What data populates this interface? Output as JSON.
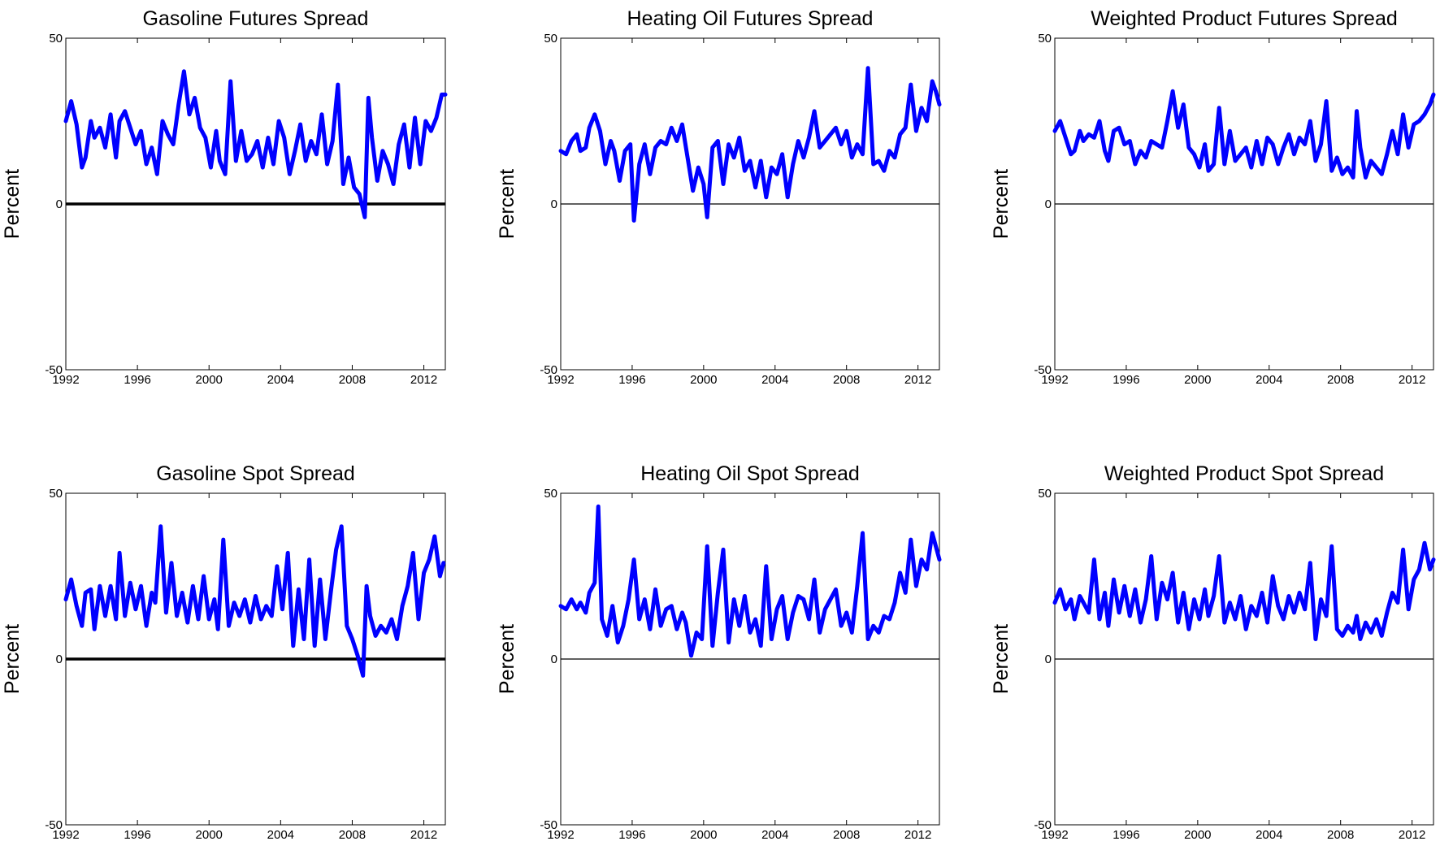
{
  "chart_data": [
    {
      "type": "line",
      "title": "Gasoline Futures Spread",
      "ylabel": "Percent",
      "xlim": [
        1992,
        2013.2
      ],
      "ylim": [
        -50,
        50
      ],
      "xticks": [
        "1992",
        "1996",
        "2000",
        "2004",
        "2008",
        "2012"
      ],
      "yticks": [
        "-50",
        "0",
        "50"
      ],
      "zero_line_bold": true,
      "series_color": "#0000ff",
      "x": [
        1992.0,
        1992.3,
        1992.6,
        1992.9,
        1993.1,
        1993.4,
        1993.6,
        1993.9,
        1994.2,
        1994.5,
        1994.8,
        1995.0,
        1995.3,
        1995.6,
        1995.9,
        1996.2,
        1996.5,
        1996.8,
        1997.1,
        1997.4,
        1997.7,
        1998.0,
        1998.3,
        1998.6,
        1998.9,
        1999.2,
        1999.5,
        1999.8,
        2000.1,
        2000.4,
        2000.6,
        2000.9,
        2001.2,
        2001.5,
        2001.8,
        2002.1,
        2002.4,
        2002.7,
        2003.0,
        2003.3,
        2003.6,
        2003.9,
        2004.2,
        2004.5,
        2004.8,
        2005.1,
        2005.4,
        2005.7,
        2006.0,
        2006.3,
        2006.6,
        2006.9,
        2007.2,
        2007.5,
        2007.8,
        2008.1,
        2008.4,
        2008.7,
        2008.9,
        2009.1,
        2009.4,
        2009.7,
        2010.0,
        2010.3,
        2010.6,
        2010.9,
        2011.2,
        2011.5,
        2011.8,
        2012.1,
        2012.4,
        2012.7,
        2013.0,
        2013.2
      ],
      "y": [
        25,
        31,
        24,
        11,
        14,
        25,
        20,
        23,
        17,
        27,
        14,
        25,
        28,
        23,
        18,
        22,
        12,
        17,
        9,
        25,
        21,
        18,
        30,
        40,
        27,
        32,
        23,
        20,
        11,
        22,
        13,
        9,
        37,
        13,
        22,
        13,
        15,
        19,
        11,
        20,
        12,
        25,
        20,
        9,
        16,
        24,
        13,
        19,
        15,
        27,
        12,
        19,
        36,
        6,
        14,
        5,
        3,
        -4,
        32,
        20,
        7,
        16,
        12,
        6,
        18,
        24,
        11,
        26,
        12,
        25,
        22,
        26,
        33,
        33
      ]
    },
    {
      "type": "line",
      "title": "Heating Oil Futures Spread",
      "ylabel": "Percent",
      "xlim": [
        1992,
        2013.2
      ],
      "ylim": [
        -50,
        50
      ],
      "xticks": [
        "1992",
        "1996",
        "2000",
        "2004",
        "2008",
        "2012"
      ],
      "yticks": [
        "-50",
        "0",
        "50"
      ],
      "zero_line_bold": false,
      "series_color": "#0000ff",
      "x": [
        1992.0,
        1992.3,
        1992.6,
        1992.9,
        1993.1,
        1993.4,
        1993.6,
        1993.9,
        1994.2,
        1994.5,
        1994.8,
        1995.0,
        1995.3,
        1995.6,
        1995.9,
        1996.1,
        1996.4,
        1996.7,
        1997.0,
        1997.3,
        1997.6,
        1997.9,
        1998.2,
        1998.5,
        1998.8,
        1999.1,
        1999.4,
        1999.7,
        2000.0,
        2000.2,
        2000.5,
        2000.8,
        2001.1,
        2001.4,
        2001.7,
        2002.0,
        2002.3,
        2002.6,
        2002.9,
        2003.2,
        2003.5,
        2003.8,
        2004.1,
        2004.4,
        2004.7,
        2005.0,
        2005.3,
        2005.6,
        2005.9,
        2006.2,
        2006.5,
        2006.8,
        2007.1,
        2007.4,
        2007.7,
        2008.0,
        2008.3,
        2008.6,
        2008.9,
        2009.2,
        2009.5,
        2009.8,
        2010.1,
        2010.4,
        2010.7,
        2011.0,
        2011.3,
        2011.6,
        2011.9,
        2012.2,
        2012.5,
        2012.8,
        2013.0,
        2013.2
      ],
      "y": [
        16,
        15,
        19,
        21,
        16,
        17,
        23,
        27,
        22,
        12,
        19,
        16,
        7,
        16,
        18,
        -5,
        12,
        18,
        9,
        17,
        19,
        18,
        23,
        19,
        24,
        14,
        4,
        11,
        6,
        -4,
        17,
        19,
        6,
        18,
        14,
        20,
        10,
        13,
        5,
        13,
        2,
        11,
        9,
        15,
        2,
        12,
        19,
        14,
        20,
        28,
        17,
        19,
        21,
        23,
        18,
        22,
        14,
        18,
        15,
        41,
        12,
        13,
        10,
        16,
        14,
        21,
        23,
        36,
        22,
        29,
        25,
        37,
        34,
        30
      ]
    },
    {
      "type": "line",
      "title": "Weighted Product Futures Spread",
      "ylabel": "Percent",
      "xlim": [
        1992,
        2013.2
      ],
      "ylim": [
        -50,
        50
      ],
      "xticks": [
        "1992",
        "1996",
        "2000",
        "2004",
        "2008",
        "2012"
      ],
      "yticks": [
        "-50",
        "0",
        "50"
      ],
      "zero_line_bold": false,
      "series_color": "#0000ff",
      "x": [
        1992.0,
        1992.3,
        1992.6,
        1992.9,
        1993.1,
        1993.4,
        1993.6,
        1993.9,
        1994.2,
        1994.5,
        1994.8,
        1995.0,
        1995.3,
        1995.6,
        1995.9,
        1996.2,
        1996.5,
        1996.8,
        1997.1,
        1997.4,
        1997.7,
        1998.0,
        1998.3,
        1998.6,
        1998.9,
        1999.2,
        1999.5,
        1999.8,
        2000.1,
        2000.4,
        2000.6,
        2000.9,
        2001.2,
        2001.5,
        2001.8,
        2002.1,
        2002.4,
        2002.7,
        2003.0,
        2003.3,
        2003.6,
        2003.9,
        2004.2,
        2004.5,
        2004.8,
        2005.1,
        2005.4,
        2005.7,
        2006.0,
        2006.3,
        2006.6,
        2006.9,
        2007.2,
        2007.5,
        2007.8,
        2008.1,
        2008.4,
        2008.7,
        2008.9,
        2009.1,
        2009.4,
        2009.7,
        2010.0,
        2010.3,
        2010.6,
        2010.9,
        2011.2,
        2011.5,
        2011.8,
        2012.1,
        2012.4,
        2012.7,
        2013.0,
        2013.2
      ],
      "y": [
        22,
        25,
        20,
        15,
        16,
        22,
        19,
        21,
        20,
        25,
        16,
        13,
        22,
        23,
        18,
        19,
        12,
        16,
        14,
        19,
        18,
        17,
        25,
        34,
        23,
        30,
        17,
        15,
        11,
        18,
        10,
        12,
        29,
        12,
        22,
        13,
        15,
        17,
        11,
        19,
        12,
        20,
        18,
        12,
        17,
        21,
        15,
        20,
        18,
        25,
        13,
        18,
        31,
        10,
        14,
        9,
        11,
        8,
        28,
        17,
        8,
        13,
        11,
        9,
        15,
        22,
        15,
        27,
        17,
        24,
        25,
        27,
        30,
        33
      ]
    },
    {
      "type": "line",
      "title": "Gasoline Spot Spread",
      "ylabel": "Percent",
      "xlim": [
        1992,
        2013.2
      ],
      "ylim": [
        -50,
        50
      ],
      "xticks": [
        "1992",
        "1996",
        "2000",
        "2004",
        "2008",
        "2012"
      ],
      "yticks": [
        "-50",
        "0",
        "50"
      ],
      "zero_line_bold": true,
      "series_color": "#0000ff",
      "x": [
        1992.0,
        1992.3,
        1992.6,
        1992.9,
        1993.1,
        1993.4,
        1993.6,
        1993.9,
        1994.2,
        1994.5,
        1994.8,
        1995.0,
        1995.3,
        1995.6,
        1995.9,
        1996.2,
        1996.5,
        1996.8,
        1997.0,
        1997.3,
        1997.6,
        1997.9,
        1998.2,
        1998.5,
        1998.8,
        1999.1,
        1999.4,
        1999.7,
        2000.0,
        2000.3,
        2000.5,
        2000.8,
        2001.1,
        2001.4,
        2001.7,
        2002.0,
        2002.3,
        2002.6,
        2002.9,
        2003.2,
        2003.5,
        2003.8,
        2004.1,
        2004.4,
        2004.7,
        2005.0,
        2005.3,
        2005.6,
        2005.9,
        2006.2,
        2006.5,
        2006.8,
        2007.1,
        2007.4,
        2007.7,
        2008.0,
        2008.3,
        2008.6,
        2008.8,
        2009.0,
        2009.3,
        2009.6,
        2009.9,
        2010.2,
        2010.5,
        2010.8,
        2011.1,
        2011.4,
        2011.7,
        2012.0,
        2012.3,
        2012.6,
        2012.9,
        2013.1
      ],
      "y": [
        18,
        24,
        16,
        10,
        20,
        21,
        9,
        22,
        13,
        22,
        12,
        32,
        13,
        23,
        15,
        22,
        10,
        20,
        17,
        40,
        14,
        29,
        13,
        20,
        11,
        22,
        12,
        25,
        12,
        18,
        9,
        36,
        10,
        17,
        13,
        18,
        11,
        19,
        12,
        16,
        13,
        28,
        15,
        32,
        4,
        21,
        6,
        30,
        4,
        24,
        6,
        20,
        33,
        40,
        10,
        6,
        1,
        -5,
        22,
        13,
        7,
        10,
        8,
        12,
        6,
        16,
        22,
        32,
        12,
        26,
        30,
        37,
        25,
        29
      ]
    },
    {
      "type": "line",
      "title": "Heating Oil Spot Spread",
      "ylabel": "Percent",
      "xlim": [
        1992,
        2013.2
      ],
      "ylim": [
        -50,
        50
      ],
      "xticks": [
        "1992",
        "1996",
        "2000",
        "2004",
        "2008",
        "2012"
      ],
      "yticks": [
        "-50",
        "0",
        "50"
      ],
      "zero_line_bold": false,
      "series_color": "#0000ff",
      "x": [
        1992.0,
        1992.3,
        1992.6,
        1992.9,
        1993.1,
        1993.4,
        1993.6,
        1993.9,
        1994.1,
        1994.3,
        1994.6,
        1994.9,
        1995.2,
        1995.5,
        1995.8,
        1996.1,
        1996.4,
        1996.7,
        1997.0,
        1997.3,
        1997.6,
        1997.9,
        1998.2,
        1998.5,
        1998.8,
        1999.0,
        1999.3,
        1999.6,
        1999.9,
        2000.2,
        2000.5,
        2000.8,
        2001.1,
        2001.4,
        2001.7,
        2002.0,
        2002.3,
        2002.6,
        2002.9,
        2003.2,
        2003.5,
        2003.8,
        2004.1,
        2004.4,
        2004.7,
        2005.0,
        2005.3,
        2005.6,
        2005.9,
        2006.2,
        2006.5,
        2006.8,
        2007.1,
        2007.4,
        2007.7,
        2008.0,
        2008.3,
        2008.6,
        2008.9,
        2009.2,
        2009.5,
        2009.8,
        2010.1,
        2010.4,
        2010.7,
        2011.0,
        2011.3,
        2011.6,
        2011.9,
        2012.2,
        2012.5,
        2012.8,
        2013.0,
        2013.2
      ],
      "y": [
        16,
        15,
        18,
        15,
        17,
        14,
        20,
        23,
        46,
        12,
        7,
        16,
        5,
        10,
        18,
        30,
        12,
        18,
        9,
        21,
        10,
        15,
        16,
        9,
        14,
        11,
        1,
        8,
        6,
        34,
        4,
        20,
        33,
        5,
        18,
        10,
        19,
        8,
        12,
        4,
        28,
        6,
        15,
        19,
        6,
        14,
        19,
        18,
        12,
        24,
        8,
        15,
        18,
        21,
        10,
        14,
        8,
        22,
        38,
        6,
        10,
        8,
        13,
        12,
        17,
        26,
        20,
        36,
        22,
        30,
        27,
        38,
        34,
        30
      ]
    },
    {
      "type": "line",
      "title": "Weighted Product Spot Spread",
      "ylabel": "Percent",
      "xlim": [
        1992,
        2013.2
      ],
      "ylim": [
        -50,
        50
      ],
      "xticks": [
        "1992",
        "1996",
        "2000",
        "2004",
        "2008",
        "2012"
      ],
      "yticks": [
        "-50",
        "0",
        "50"
      ],
      "zero_line_bold": false,
      "series_color": "#0000ff",
      "x": [
        1992.0,
        1992.3,
        1992.6,
        1992.9,
        1993.1,
        1993.4,
        1993.6,
        1993.9,
        1994.2,
        1994.5,
        1994.8,
        1995.0,
        1995.3,
        1995.6,
        1995.9,
        1996.2,
        1996.5,
        1996.8,
        1997.1,
        1997.4,
        1997.7,
        1998.0,
        1998.3,
        1998.6,
        1998.9,
        1999.2,
        1999.5,
        1999.8,
        2000.1,
        2000.4,
        2000.6,
        2000.9,
        2001.2,
        2001.5,
        2001.8,
        2002.1,
        2002.4,
        2002.7,
        2003.0,
        2003.3,
        2003.6,
        2003.9,
        2004.2,
        2004.5,
        2004.8,
        2005.1,
        2005.4,
        2005.7,
        2006.0,
        2006.3,
        2006.6,
        2006.9,
        2007.2,
        2007.5,
        2007.8,
        2008.1,
        2008.4,
        2008.7,
        2008.9,
        2009.1,
        2009.4,
        2009.7,
        2010.0,
        2010.3,
        2010.6,
        2010.9,
        2011.2,
        2011.5,
        2011.8,
        2012.1,
        2012.4,
        2012.7,
        2013.0,
        2013.2
      ],
      "y": [
        17,
        21,
        15,
        18,
        12,
        19,
        17,
        14,
        30,
        12,
        20,
        10,
        24,
        14,
        22,
        13,
        21,
        11,
        18,
        31,
        12,
        23,
        18,
        26,
        11,
        20,
        9,
        18,
        12,
        21,
        13,
        19,
        31,
        11,
        17,
        12,
        19,
        9,
        16,
        13,
        20,
        11,
        25,
        16,
        12,
        19,
        14,
        20,
        15,
        29,
        6,
        18,
        13,
        34,
        9,
        7,
        10,
        8,
        13,
        6,
        11,
        8,
        12,
        7,
        14,
        20,
        17,
        33,
        15,
        24,
        27,
        35,
        27,
        30
      ]
    }
  ]
}
